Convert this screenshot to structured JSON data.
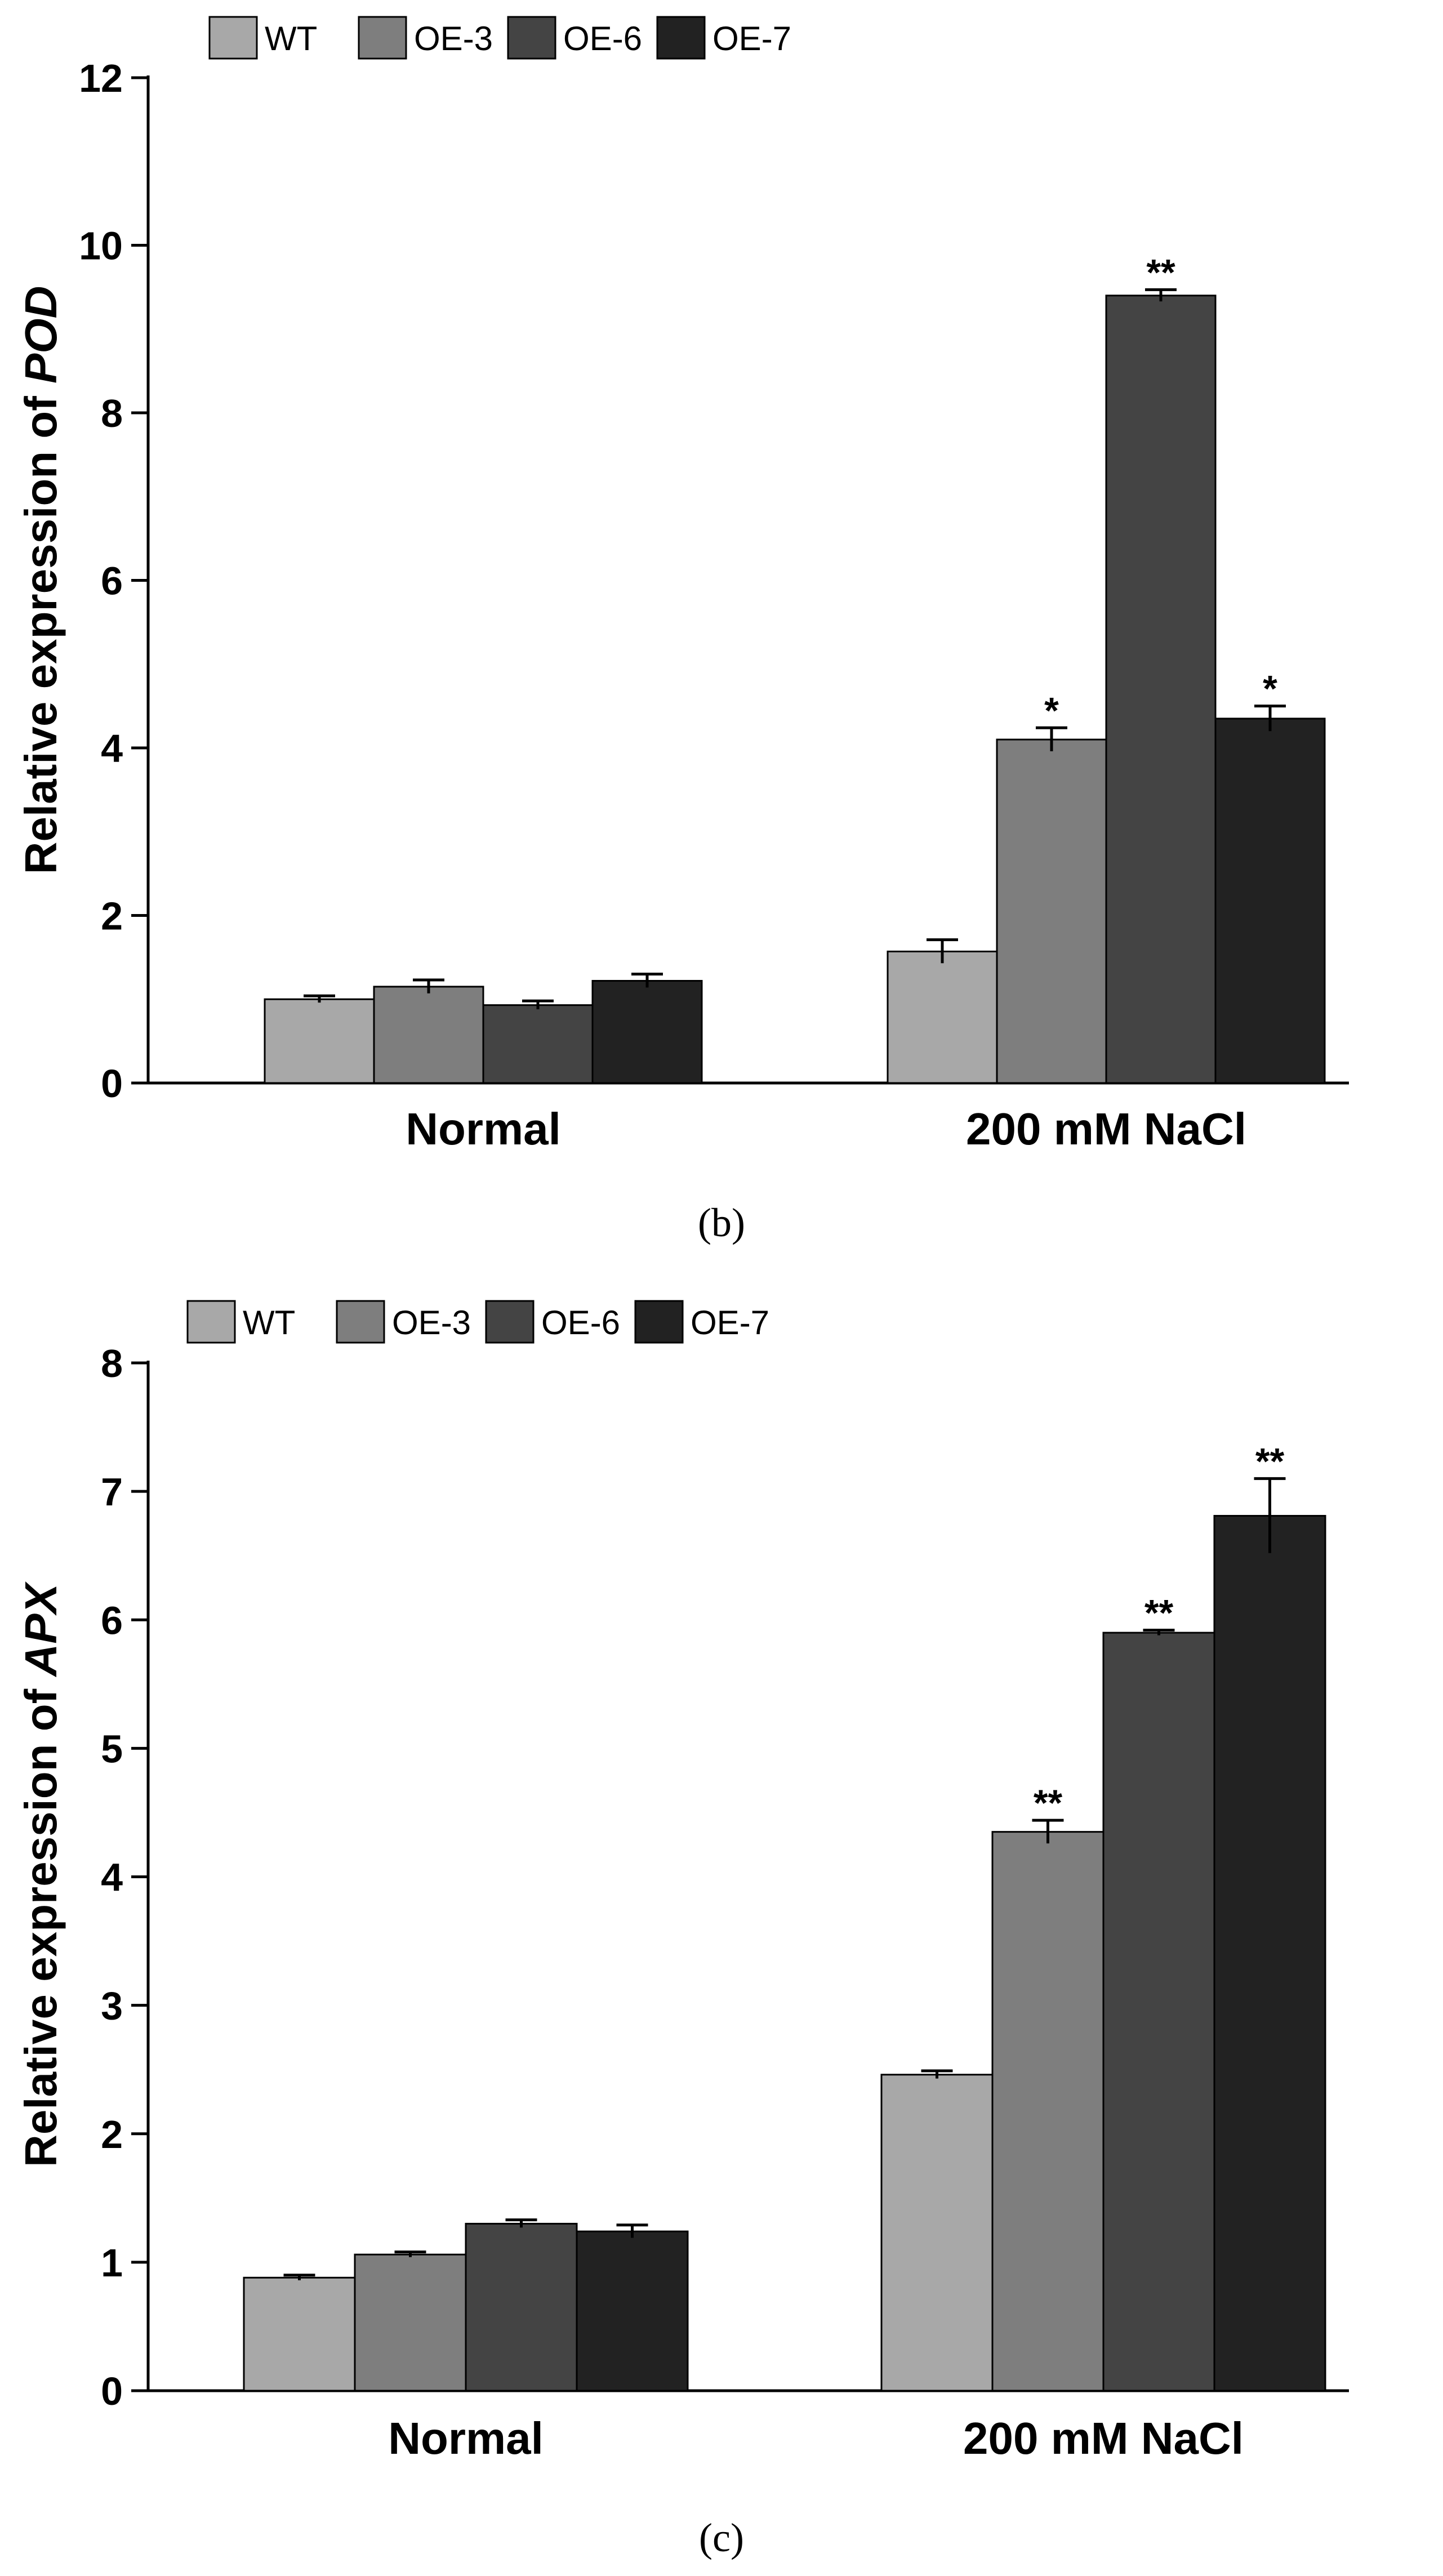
{
  "chart_data": [
    {
      "type": "bar",
      "panel_label": "(b)",
      "ylabel_prefix": "Relative expression of ",
      "ylabel_gene": "POD",
      "categories": [
        "Normal",
        "200 mM NaCl"
      ],
      "ylim": [
        0,
        12
      ],
      "yticks": [
        0,
        2,
        4,
        6,
        8,
        10,
        12
      ],
      "series": [
        {
          "name": "WT",
          "color": "#a8a8a8",
          "values": [
            1.0,
            1.57
          ],
          "errors": [
            0.04,
            0.14
          ],
          "sig": [
            "",
            ""
          ]
        },
        {
          "name": "OE-3",
          "color": "#7e7e7e",
          "values": [
            1.15,
            4.1
          ],
          "errors": [
            0.08,
            0.14
          ],
          "sig": [
            "",
            "*"
          ]
        },
        {
          "name": "OE-6",
          "color": "#444444",
          "values": [
            0.93,
            9.4
          ],
          "errors": [
            0.05,
            0.07
          ],
          "sig": [
            "",
            "**"
          ]
        },
        {
          "name": "OE-7",
          "color": "#222222",
          "values": [
            1.22,
            4.35
          ],
          "errors": [
            0.08,
            0.15
          ],
          "sig": [
            "",
            "*"
          ]
        }
      ]
    },
    {
      "type": "bar",
      "panel_label": "(c)",
      "ylabel_prefix": "Relative expression of ",
      "ylabel_gene": "APX",
      "categories": [
        "Normal",
        "200 mM NaCl"
      ],
      "ylim": [
        0,
        8
      ],
      "yticks": [
        0,
        1,
        2,
        3,
        4,
        5,
        6,
        7,
        8
      ],
      "series": [
        {
          "name": "WT",
          "color": "#a8a8a8",
          "values": [
            0.88,
            2.46
          ],
          "errors": [
            0.02,
            0.03
          ],
          "sig": [
            "",
            ""
          ]
        },
        {
          "name": "OE-3",
          "color": "#7e7e7e",
          "values": [
            1.06,
            4.35
          ],
          "errors": [
            0.02,
            0.09
          ],
          "sig": [
            "",
            "**"
          ]
        },
        {
          "name": "OE-6",
          "color": "#444444",
          "values": [
            1.3,
            5.9
          ],
          "errors": [
            0.03,
            0.02
          ],
          "sig": [
            "",
            "**"
          ]
        },
        {
          "name": "OE-7",
          "color": "#222222",
          "values": [
            1.24,
            6.81
          ],
          "errors": [
            0.05,
            0.29
          ],
          "sig": [
            "",
            "**"
          ]
        }
      ]
    }
  ]
}
